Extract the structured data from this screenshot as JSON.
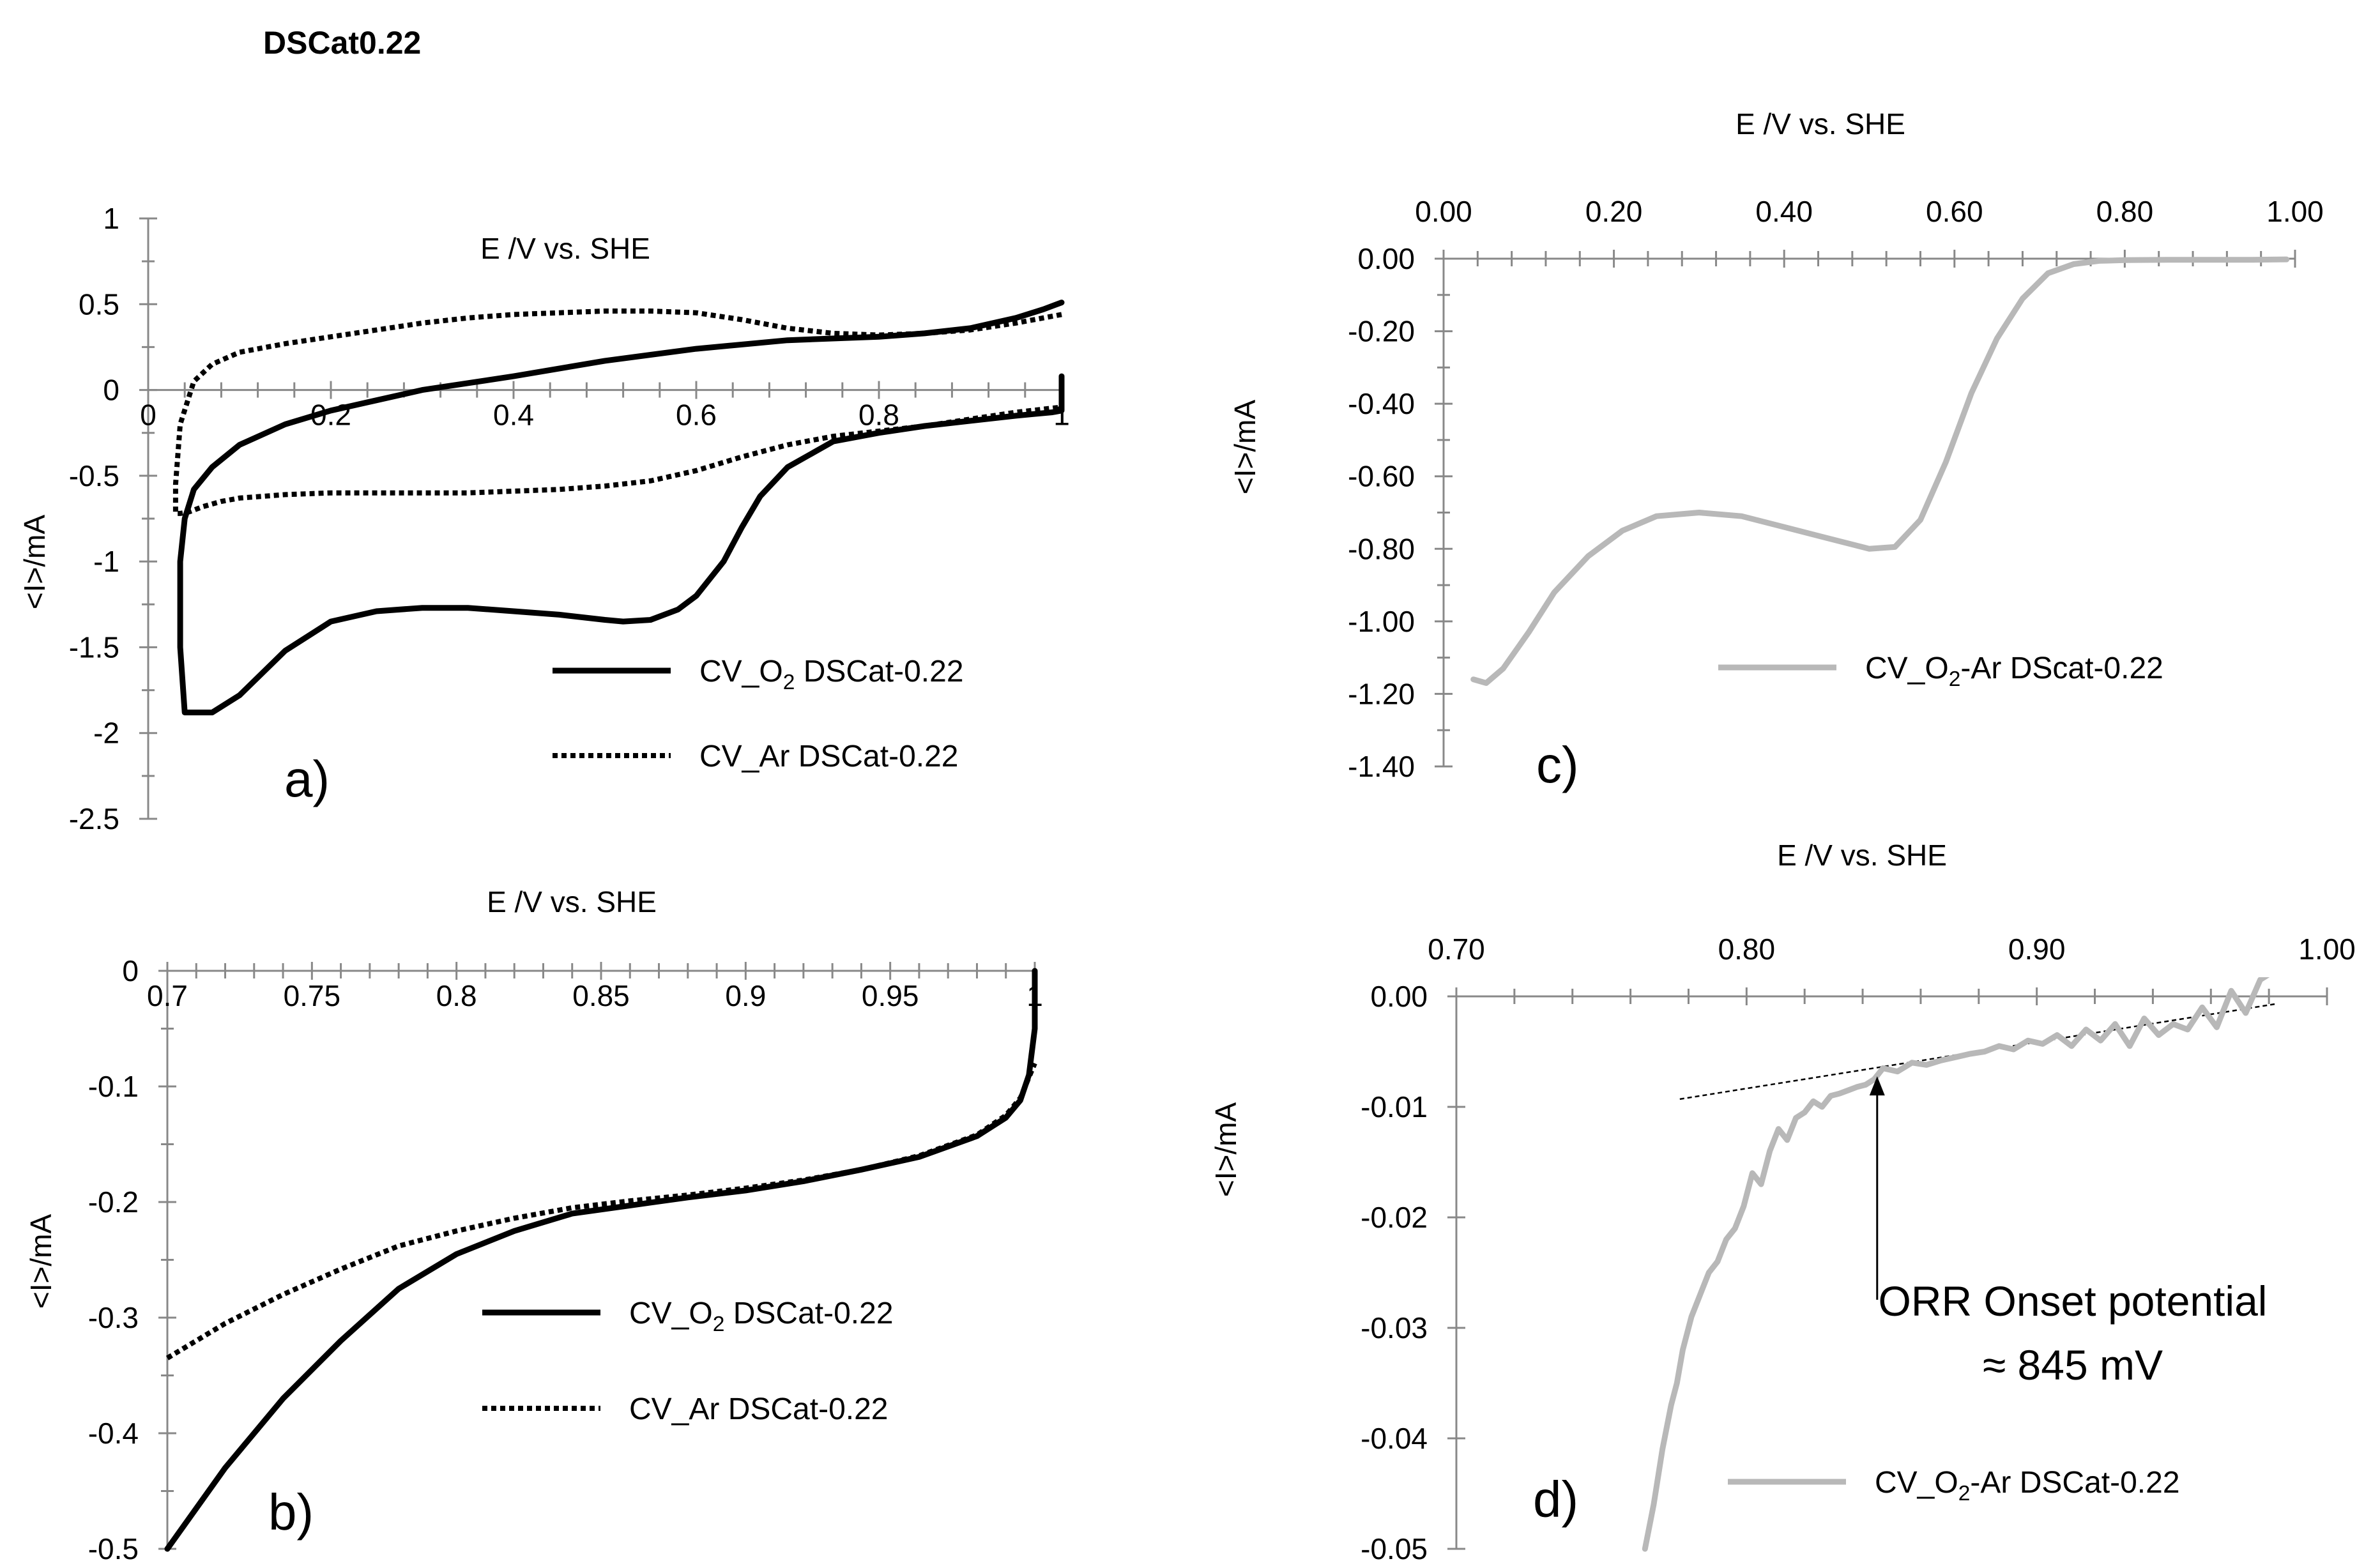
{
  "figure": {
    "title": "DSCat0.22"
  },
  "chart_data": [
    {
      "panel_label": "a)",
      "type": "line",
      "xlabel": "E /V vs. SHE",
      "ylabel": "<I>/mA",
      "xlim": [
        0,
        1
      ],
      "ylim": [
        -2.5,
        1
      ],
      "x_ticks": [
        "0",
        "0.2",
        "0.4",
        "0.6",
        "0.8",
        "1"
      ],
      "y_ticks": [
        "1",
        "0.5",
        "0",
        "-0.5",
        "-1",
        "-1.5",
        "-2",
        "-2.5"
      ],
      "legend": {
        "position": "bottom-right"
      },
      "series": [
        {
          "name": "CV_O2 DSCat-0.22",
          "name_main": "CV_O",
          "name_sub": "2",
          "name_rest": " DSCat-0.22",
          "style": "solid",
          "color": "#000000",
          "x": [
            1.0,
            1.0,
            0.99,
            0.97,
            0.95,
            0.9,
            0.85,
            0.8,
            0.75,
            0.7,
            0.67,
            0.65,
            0.63,
            0.6,
            0.58,
            0.55,
            0.52,
            0.5,
            0.45,
            0.4,
            0.35,
            0.3,
            0.25,
            0.2,
            0.15,
            0.1,
            0.07,
            0.05,
            0.04,
            0.035,
            0.035,
            0.04,
            0.05,
            0.07,
            0.1,
            0.15,
            0.2,
            0.25,
            0.3,
            0.4,
            0.5,
            0.6,
            0.7,
            0.8,
            0.85,
            0.9,
            0.95,
            0.98,
            1.0
          ],
          "y": [
            0.08,
            -0.12,
            -0.13,
            -0.14,
            -0.15,
            -0.18,
            -0.21,
            -0.25,
            -0.3,
            -0.45,
            -0.62,
            -0.8,
            -1.0,
            -1.2,
            -1.28,
            -1.34,
            -1.35,
            -1.34,
            -1.31,
            -1.29,
            -1.27,
            -1.27,
            -1.29,
            -1.35,
            -1.52,
            -1.78,
            -1.88,
            -1.88,
            -1.88,
            -1.5,
            -1.0,
            -0.75,
            -0.58,
            -0.45,
            -0.32,
            -0.2,
            -0.12,
            -0.06,
            0.0,
            0.08,
            0.17,
            0.24,
            0.29,
            0.31,
            0.33,
            0.36,
            0.42,
            0.47,
            0.51
          ]
        },
        {
          "name": "CV_Ar DSCat-0.22",
          "name_main": "CV_Ar DSCat-0.22",
          "name_sub": "",
          "name_rest": "",
          "style": "dotted",
          "color": "#000000",
          "x": [
            1.0,
            0.95,
            0.9,
            0.85,
            0.8,
            0.75,
            0.7,
            0.65,
            0.6,
            0.55,
            0.5,
            0.45,
            0.4,
            0.35,
            0.3,
            0.25,
            0.2,
            0.15,
            0.1,
            0.07,
            0.05,
            0.035,
            0.03,
            0.03,
            0.035,
            0.045,
            0.06,
            0.08,
            0.1,
            0.15,
            0.2,
            0.25,
            0.3,
            0.35,
            0.4,
            0.45,
            0.5,
            0.55,
            0.6,
            0.65,
            0.7,
            0.75,
            0.8,
            0.85,
            0.9,
            0.95,
            1.0
          ],
          "y": [
            0.44,
            0.39,
            0.35,
            0.33,
            0.32,
            0.33,
            0.36,
            0.41,
            0.45,
            0.46,
            0.46,
            0.45,
            0.44,
            0.42,
            0.39,
            0.35,
            0.31,
            0.27,
            0.22,
            0.15,
            0.05,
            -0.2,
            -0.55,
            -0.72,
            -0.72,
            -0.71,
            -0.68,
            -0.65,
            -0.63,
            -0.61,
            -0.6,
            -0.6,
            -0.6,
            -0.6,
            -0.59,
            -0.58,
            -0.56,
            -0.53,
            -0.47,
            -0.39,
            -0.32,
            -0.27,
            -0.24,
            -0.21,
            -0.17,
            -0.13,
            -0.1
          ]
        }
      ]
    },
    {
      "panel_label": "b)",
      "type": "line",
      "xlabel": "E /V vs. SHE",
      "ylabel": "<I>/mA",
      "xlim": [
        0.7,
        1
      ],
      "ylim": [
        -0.5,
        0
      ],
      "x_ticks": [
        "0.7",
        "0.75",
        "0.8",
        "0.85",
        "0.9",
        "0.95",
        "1"
      ],
      "y_ticks": [
        "0",
        "-0.1",
        "-0.2",
        "-0.3",
        "-0.4",
        "-0.5"
      ],
      "legend": {
        "position": "bottom-right"
      },
      "series": [
        {
          "name": "CV_O2 DSCat-0.22",
          "name_main": "CV_O",
          "name_sub": "2",
          "name_rest": " DSCat-0.22",
          "style": "solid",
          "color": "#000000",
          "x": [
            0.7,
            0.72,
            0.74,
            0.76,
            0.78,
            0.8,
            0.82,
            0.84,
            0.86,
            0.88,
            0.9,
            0.92,
            0.94,
            0.96,
            0.98,
            0.99,
            0.995,
            0.998,
            1.0,
            1.0
          ],
          "y": [
            -0.5,
            -0.43,
            -0.37,
            -0.32,
            -0.275,
            -0.245,
            -0.225,
            -0.21,
            -0.203,
            -0.196,
            -0.19,
            -0.182,
            -0.172,
            -0.161,
            -0.143,
            -0.127,
            -0.112,
            -0.09,
            -0.05,
            0.0
          ]
        },
        {
          "name": "CV_Ar DSCat-0.22",
          "name_main": "CV_Ar DSCat-0.22",
          "name_sub": "",
          "name_rest": "",
          "style": "dotted",
          "color": "#000000",
          "x": [
            0.7,
            0.72,
            0.74,
            0.76,
            0.78,
            0.8,
            0.82,
            0.84,
            0.86,
            0.88,
            0.9,
            0.92,
            0.94,
            0.96,
            0.98,
            0.99,
            0.995,
            1.0
          ],
          "y": [
            -0.335,
            -0.305,
            -0.28,
            -0.258,
            -0.238,
            -0.225,
            -0.214,
            -0.205,
            -0.199,
            -0.194,
            -0.188,
            -0.181,
            -0.172,
            -0.16,
            -0.142,
            -0.125,
            -0.11,
            -0.08
          ]
        }
      ]
    },
    {
      "panel_label": "c)",
      "type": "line",
      "xlabel": "E /V vs. SHE",
      "ylabel": "<I>/mA",
      "xlim": [
        0,
        1
      ],
      "ylim": [
        -1.4,
        0
      ],
      "x_ticks": [
        "0.00",
        "0.20",
        "0.40",
        "0.60",
        "0.80",
        "1.00"
      ],
      "y_ticks": [
        "0.00",
        "-0.20",
        "-0.40",
        "-0.60",
        "-0.80",
        "-1.00",
        "-1.20",
        "-1.40"
      ],
      "legend": {
        "position": "bottom-right"
      },
      "series": [
        {
          "name": "CV_O2-Ar DScat-0.22",
          "name_main": "CV_O",
          "name_sub": "2",
          "name_rest": "-Ar DScat-0.22",
          "style": "solid",
          "color": "#b8b8b8",
          "x": [
            0.035,
            0.05,
            0.07,
            0.1,
            0.13,
            0.17,
            0.21,
            0.25,
            0.3,
            0.35,
            0.4,
            0.45,
            0.5,
            0.53,
            0.56,
            0.59,
            0.62,
            0.65,
            0.68,
            0.71,
            0.74,
            0.77,
            0.8,
            0.85,
            0.9,
            0.95,
            0.99
          ],
          "y": [
            -1.16,
            -1.17,
            -1.13,
            -1.03,
            -0.92,
            -0.82,
            -0.75,
            -0.71,
            -0.7,
            -0.71,
            -0.74,
            -0.77,
            -0.8,
            -0.795,
            -0.72,
            -0.56,
            -0.37,
            -0.22,
            -0.11,
            -0.04,
            -0.015,
            -0.006,
            -0.004,
            -0.003,
            -0.003,
            -0.003,
            -0.002
          ]
        }
      ]
    },
    {
      "panel_label": "d)",
      "type": "line",
      "xlabel": "E /V vs. SHE",
      "ylabel": "<I>/mA",
      "xlim": [
        0.7,
        1
      ],
      "ylim": [
        -0.05,
        0
      ],
      "x_ticks": [
        "0.70",
        "0.80",
        "0.90",
        "1.00"
      ],
      "y_ticks": [
        "0.00",
        "-0.01",
        "-0.02",
        "-0.03",
        "-0.04",
        "-0.05"
      ],
      "legend": {
        "position": "bottom-right"
      },
      "annotation": {
        "line1": "ORR Onset potential",
        "line2": "≈ 845 mV",
        "x": 0.845,
        "y": -0.007
      },
      "tangent": {
        "x": [
          0.777,
          0.982
        ],
        "y": [
          -0.0093,
          -0.0007
        ]
      },
      "series": [
        {
          "name": "CV_O2-Ar DSCat-0.22",
          "name_main": "CV_O",
          "name_sub": "2",
          "name_rest": "-Ar DSCat-0.22",
          "style": "solid",
          "color": "#b8b8b8",
          "x": [
            0.765,
            0.768,
            0.771,
            0.774,
            0.776,
            0.778,
            0.781,
            0.784,
            0.787,
            0.79,
            0.793,
            0.796,
            0.799,
            0.802,
            0.805,
            0.808,
            0.811,
            0.814,
            0.817,
            0.82,
            0.823,
            0.826,
            0.829,
            0.832,
            0.835,
            0.838,
            0.841,
            0.844,
            0.847,
            0.852,
            0.857,
            0.862,
            0.867,
            0.872,
            0.877,
            0.882,
            0.887,
            0.892,
            0.897,
            0.902,
            0.907,
            0.912,
            0.917,
            0.922,
            0.927,
            0.932,
            0.937,
            0.942,
            0.947,
            0.952,
            0.957,
            0.962,
            0.967,
            0.972,
            0.977,
            0.98
          ],
          "y": [
            -0.05,
            -0.046,
            -0.041,
            -0.037,
            -0.035,
            -0.032,
            -0.029,
            -0.027,
            -0.025,
            -0.024,
            -0.022,
            -0.021,
            -0.019,
            -0.016,
            -0.017,
            -0.014,
            -0.012,
            -0.013,
            -0.011,
            -0.0105,
            -0.0095,
            -0.01,
            -0.009,
            -0.0088,
            -0.0085,
            -0.0082,
            -0.008,
            -0.0075,
            -0.0065,
            -0.0068,
            -0.006,
            -0.0062,
            -0.0058,
            -0.0055,
            -0.0052,
            -0.005,
            -0.0045,
            -0.0048,
            -0.004,
            -0.0043,
            -0.0035,
            -0.0045,
            -0.003,
            -0.004,
            -0.0025,
            -0.0045,
            -0.002,
            -0.0035,
            -0.0025,
            -0.003,
            -0.001,
            -0.0028,
            0.0005,
            -0.0015,
            0.0015,
            0.002
          ]
        }
      ]
    }
  ]
}
